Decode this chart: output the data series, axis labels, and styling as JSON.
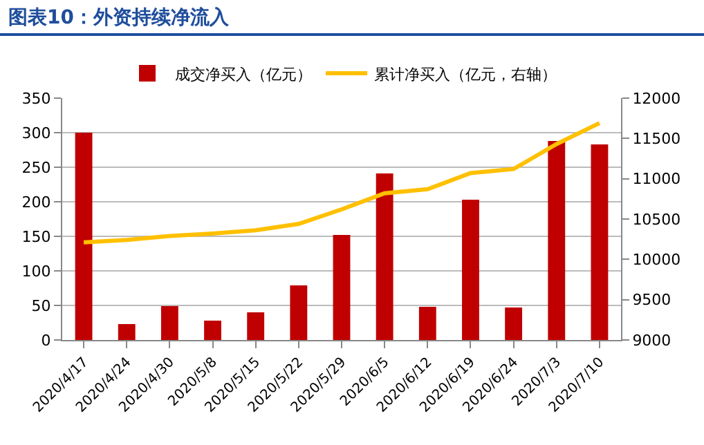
{
  "chart_data": {
    "type": "bar",
    "title": "图表10：外资持续净流入",
    "categories": [
      "2020/4/17",
      "2020/4/24",
      "2020/4/30",
      "2020/5/8",
      "2020/5/15",
      "2020/5/22",
      "2020/5/29",
      "2020/6/5",
      "2020/6/12",
      "2020/6/19",
      "2020/6/24",
      "2020/7/3",
      "2020/7/10"
    ],
    "series": [
      {
        "name": "成交净买入（亿元）",
        "color": "#c00000",
        "values": [
          300,
          23,
          49,
          28,
          40,
          79,
          152,
          241,
          48,
          203,
          47,
          288,
          283
        ]
      },
      {
        "name": "累计净买入（亿元，右轴）",
        "type": "line",
        "axis": "y2",
        "color": "#ffc000",
        "values": [
          10210,
          10240,
          10290,
          10320,
          10360,
          10440,
          10620,
          10820,
          10870,
          11070,
          11120,
          11430,
          11690
        ]
      }
    ],
    "ylim": [
      0,
      350
    ],
    "yticks": [
      0,
      50,
      100,
      150,
      200,
      250,
      300,
      350
    ],
    "y2lim": [
      9000,
      12000
    ],
    "y2ticks": [
      9000,
      9500,
      10000,
      10500,
      11000,
      11500,
      12000
    ],
    "grid": "y",
    "legend": "top"
  }
}
